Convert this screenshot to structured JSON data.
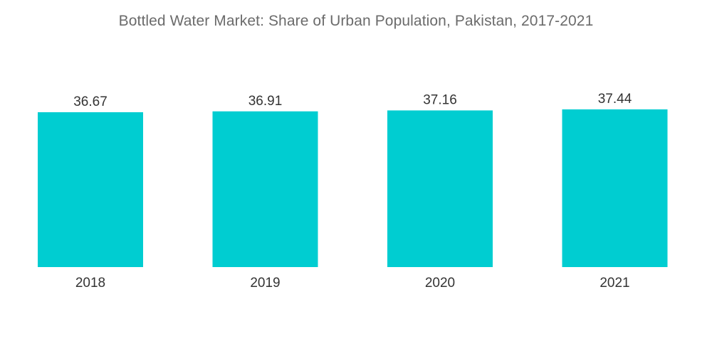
{
  "chart_data": {
    "type": "bar",
    "title": "Bottled Water Market: Share of Urban Population, Pakistan, 2017-2021",
    "xlabel": "",
    "ylabel": "",
    "categories": [
      "2018",
      "2019",
      "2020",
      "2021"
    ],
    "values": [
      36.67,
      36.91,
      37.16,
      37.44
    ],
    "value_labels": [
      "36.67",
      "36.91",
      "37.16",
      "37.44"
    ],
    "bar_color": "#00CDD1",
    "grid": false,
    "legend": "none"
  }
}
